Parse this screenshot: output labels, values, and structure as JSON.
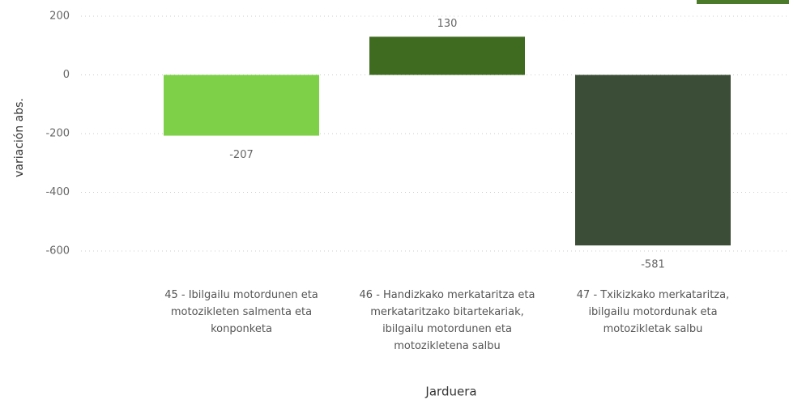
{
  "chart_data": {
    "type": "bar",
    "categories": [
      "45 - Ibilgailu motordunen eta motozikleten salmenta eta konponketa",
      "46 - Handizkako merkataritza eta merkataritzako bitartekariak, ibilgailu motordunen eta motozikletena salbu",
      "47 - Txikizkako merkataritza, ibilgailu motordunak eta motozikletak salbu"
    ],
    "values": [
      -207,
      130,
      -581
    ],
    "colors": [
      "#7ed048",
      "#3e6b1f",
      "#3b4d36"
    ],
    "ylim": [
      -600,
      200
    ],
    "yticks": [
      -600,
      -400,
      -200,
      0,
      200
    ],
    "grid": true,
    "x_label": "Jarduera",
    "y_label": "variación abs."
  }
}
